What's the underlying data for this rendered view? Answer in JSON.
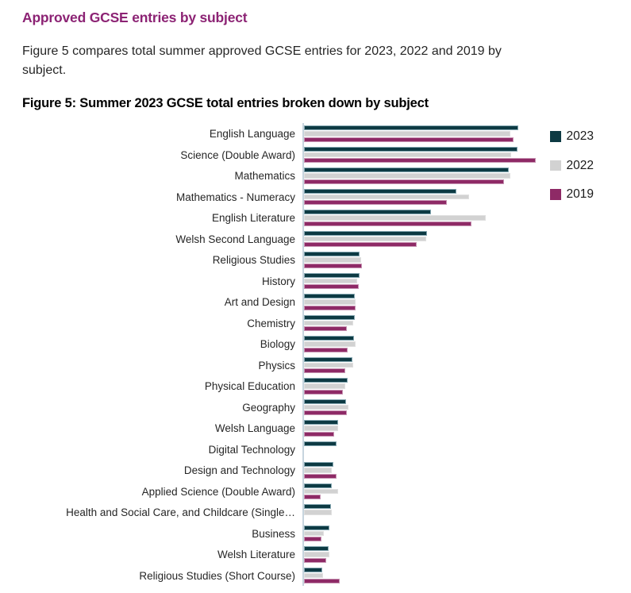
{
  "page": {
    "section_heading": "Approved GCSE entries by subject",
    "intro_lines": [
      "Figure 5 compares total summer approved GCSE entries for 2023, 2022 and 2019 by",
      "subject."
    ],
    "figure_caption": "Figure 5: Summer 2023 GCSE total entries broken down by subject"
  },
  "colors": {
    "heading_purple": "#8c2374",
    "body_text": "#262626",
    "axis_line": "#c7d5de",
    "series_2023": "#0d3a43",
    "series_2022": "#d2d2d2",
    "series_2019": "#8e2a66"
  },
  "chart_data": {
    "type": "bar",
    "orientation": "horizontal",
    "title": "Figure 5: Summer 2023 GCSE total entries broken down by subject",
    "xlabel": "",
    "ylabel": "",
    "grid": false,
    "legend_position": "top-right",
    "value_unit": "approximate bar length in screenshot px (numeric x-axis not visible in image)",
    "categories": [
      "English Language",
      "Science (Double Award)",
      "Mathematics",
      "Mathematics - Numeracy",
      "English Literature",
      "Welsh Second Language",
      "Religious Studies",
      "History",
      "Art and Design",
      "Chemistry",
      "Biology",
      "Physics",
      "Physical Education",
      "Geography",
      "Welsh Language",
      "Digital Technology",
      "Design and Technology",
      "Applied Science (Double Award)",
      "Health and Social Care, and Childcare (Single…",
      "Business",
      "Welsh Literature",
      "Religious Studies (Short Course)"
    ],
    "series": [
      {
        "name": "2023",
        "color": "#0d3a43",
        "border": "#86a8b2",
        "values": [
          270,
          269,
          258,
          192,
          160,
          155,
          70,
          70,
          64,
          64,
          63,
          61,
          55,
          53,
          43,
          41,
          37,
          35,
          34,
          32,
          31,
          23
        ]
      },
      {
        "name": "2022",
        "color": "#d2d2d2",
        "border": "#e0e0e0",
        "values": [
          260,
          261,
          260,
          208,
          229,
          154,
          72,
          67,
          65,
          62,
          65,
          62,
          52,
          56,
          43,
          0,
          35,
          43,
          35,
          25,
          32,
          24
        ]
      },
      {
        "name": "2019",
        "color": "#8e2a66",
        "border": "#c795b3",
        "values": [
          264,
          292,
          252,
          180,
          211,
          142,
          73,
          69,
          65,
          54,
          55,
          52,
          49,
          54,
          38,
          0,
          41,
          21,
          0,
          22,
          28,
          45
        ]
      }
    ]
  },
  "legend": [
    {
      "label": "2023",
      "color": "#0d3a43"
    },
    {
      "label": "2022",
      "color": "#d2d2d2"
    },
    {
      "label": "2019",
      "color": "#8e2a66"
    }
  ]
}
